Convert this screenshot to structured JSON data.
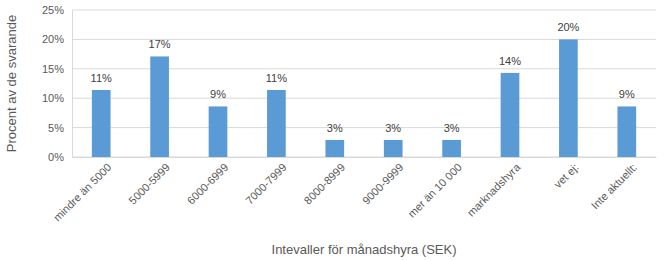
{
  "chart_data": {
    "type": "bar",
    "x_label": "Intevaller för månadshyra (SEK)",
    "y_label": "Procent av de svarande",
    "categories": [
      "mindre än 5000",
      "5000-5999",
      "6000-6999",
      "7000-7999",
      "8000-8999",
      "9000-9999",
      "mer än 10 000",
      "marknadshyra",
      "vet ej:",
      "Inte aktuellt:"
    ],
    "values": [
      11.4,
      17.1,
      8.6,
      11.4,
      2.9,
      2.9,
      2.9,
      14.3,
      20,
      8.6
    ],
    "value_labels": [
      "11%",
      "17%",
      "9%",
      "11%",
      "3%",
      "3%",
      "3%",
      "14%",
      "20%",
      "9%"
    ],
    "color": "#5b9bd5",
    "ylim": [
      0,
      25
    ],
    "yticks": [
      {
        "value": 0,
        "label": "0%"
      },
      {
        "value": 5,
        "label": "5%"
      },
      {
        "value": 10,
        "label": "10%"
      },
      {
        "value": 15,
        "label": "15%"
      },
      {
        "value": 20,
        "label": "20%"
      },
      {
        "value": 25,
        "label": "25%"
      }
    ],
    "grid": true,
    "data_labels": true
  }
}
